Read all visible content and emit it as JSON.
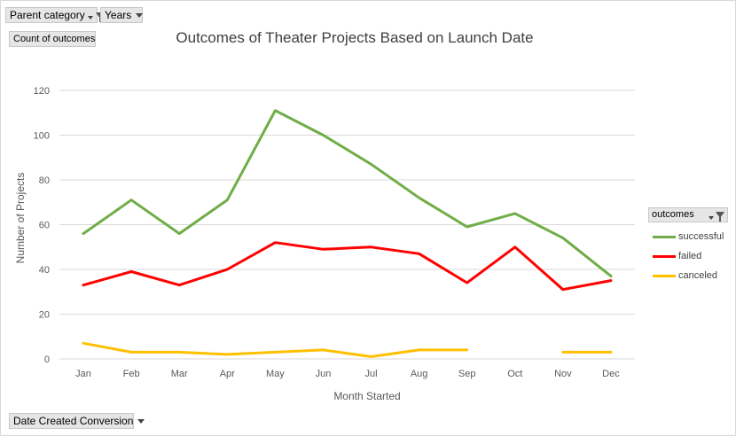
{
  "filters": {
    "parent_category": "Parent category",
    "years": "Years",
    "values_field": "Count of outcomes",
    "axis_field": "Date Created Conversion"
  },
  "legend": {
    "title": "outcomes"
  },
  "colors": {
    "successful": "#70ad47",
    "failed": "#ff0000",
    "canceled": "#ffc000",
    "grid": "#d9d9d9",
    "text": "#595959"
  },
  "chart_data": {
    "type": "line",
    "title": "Outcomes of Theater Projects Based on Launch Date",
    "xlabel": "Month Started",
    "ylabel": "Number of Projects",
    "categories": [
      "Jan",
      "Feb",
      "Mar",
      "Apr",
      "May",
      "Jun",
      "Jul",
      "Aug",
      "Sep",
      "Oct",
      "Nov",
      "Dec"
    ],
    "ylim": [
      0,
      120
    ],
    "yticks": [
      0,
      20,
      40,
      60,
      80,
      100,
      120
    ],
    "grid": true,
    "legend_position": "right",
    "series": [
      {
        "name": "successful",
        "values": [
          56,
          71,
          56,
          71,
          111,
          100,
          87,
          72,
          59,
          65,
          54,
          37
        ]
      },
      {
        "name": "failed",
        "values": [
          33,
          39,
          33,
          40,
          52,
          49,
          50,
          47,
          34,
          50,
          31,
          35
        ]
      },
      {
        "name": "canceled",
        "values": [
          7,
          3,
          3,
          2,
          3,
          4,
          1,
          4,
          4,
          null,
          3,
          3
        ]
      }
    ]
  }
}
